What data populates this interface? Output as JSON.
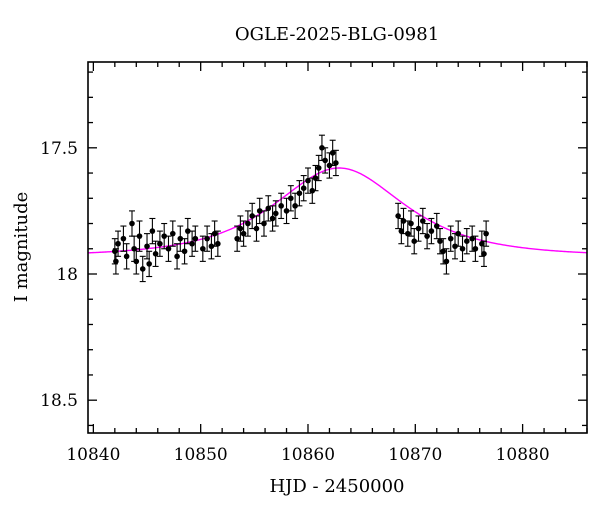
{
  "chart_data": {
    "type": "scatter",
    "title": "OGLE-2025-BLG-0981",
    "xlabel": "HJD - 2450000",
    "ylabel": "I magnitude",
    "xlim": [
      10839.5,
      10886
    ],
    "ylim": [
      18.63,
      17.16
    ],
    "y_inverted": true,
    "xticks": [
      10840,
      10850,
      10860,
      10870,
      10880
    ],
    "xtick_labels": [
      "10840",
      "10850",
      "10860",
      "10870",
      "10880"
    ],
    "yticks": [
      17.5,
      18,
      18.5
    ],
    "ytick_labels": [
      "17.5",
      "18",
      "18.5"
    ],
    "grid": false,
    "colors": {
      "model": "#ff00ff",
      "points": "#000000"
    },
    "model": {
      "t0": 10862.9,
      "i_peak": 17.58,
      "baseline": 17.93,
      "tE": 7.5
    },
    "points": [
      {
        "x": 10842.0,
        "y": 17.91,
        "err": 0.05
      },
      {
        "x": 10842.1,
        "y": 17.95,
        "err": 0.05
      },
      {
        "x": 10842.3,
        "y": 17.88,
        "err": 0.05
      },
      {
        "x": 10842.8,
        "y": 17.86,
        "err": 0.05
      },
      {
        "x": 10843.1,
        "y": 17.93,
        "err": 0.05
      },
      {
        "x": 10843.6,
        "y": 17.8,
        "err": 0.05
      },
      {
        "x": 10843.8,
        "y": 17.9,
        "err": 0.05
      },
      {
        "x": 10844.0,
        "y": 17.95,
        "err": 0.05
      },
      {
        "x": 10844.3,
        "y": 17.85,
        "err": 0.06
      },
      {
        "x": 10844.6,
        "y": 17.98,
        "err": 0.05
      },
      {
        "x": 10845.0,
        "y": 17.89,
        "err": 0.05
      },
      {
        "x": 10845.2,
        "y": 17.96,
        "err": 0.05
      },
      {
        "x": 10845.5,
        "y": 17.83,
        "err": 0.05
      },
      {
        "x": 10845.8,
        "y": 17.92,
        "err": 0.05
      },
      {
        "x": 10846.2,
        "y": 17.88,
        "err": 0.05
      },
      {
        "x": 10846.6,
        "y": 17.85,
        "err": 0.05
      },
      {
        "x": 10847.0,
        "y": 17.9,
        "err": 0.05
      },
      {
        "x": 10847.4,
        "y": 17.84,
        "err": 0.05
      },
      {
        "x": 10847.8,
        "y": 17.93,
        "err": 0.05
      },
      {
        "x": 10848.1,
        "y": 17.86,
        "err": 0.05
      },
      {
        "x": 10848.5,
        "y": 17.91,
        "err": 0.05
      },
      {
        "x": 10848.8,
        "y": 17.83,
        "err": 0.05
      },
      {
        "x": 10849.2,
        "y": 17.88,
        "err": 0.05
      },
      {
        "x": 10849.5,
        "y": 17.86,
        "err": 0.05
      },
      {
        "x": 10850.2,
        "y": 17.9,
        "err": 0.05
      },
      {
        "x": 10850.6,
        "y": 17.86,
        "err": 0.05
      },
      {
        "x": 10851.0,
        "y": 17.89,
        "err": 0.05
      },
      {
        "x": 10851.3,
        "y": 17.84,
        "err": 0.05
      },
      {
        "x": 10851.6,
        "y": 17.88,
        "err": 0.05
      },
      {
        "x": 10853.4,
        "y": 17.86,
        "err": 0.05
      },
      {
        "x": 10853.7,
        "y": 17.82,
        "err": 0.05
      },
      {
        "x": 10854.0,
        "y": 17.84,
        "err": 0.05
      },
      {
        "x": 10854.4,
        "y": 17.8,
        "err": 0.05
      },
      {
        "x": 10854.8,
        "y": 17.77,
        "err": 0.05
      },
      {
        "x": 10855.2,
        "y": 17.82,
        "err": 0.05
      },
      {
        "x": 10855.5,
        "y": 17.75,
        "err": 0.05
      },
      {
        "x": 10855.9,
        "y": 17.8,
        "err": 0.05
      },
      {
        "x": 10856.3,
        "y": 17.74,
        "err": 0.05
      },
      {
        "x": 10856.7,
        "y": 17.78,
        "err": 0.05
      },
      {
        "x": 10857.0,
        "y": 17.76,
        "err": 0.05
      },
      {
        "x": 10857.5,
        "y": 17.73,
        "err": 0.05
      },
      {
        "x": 10858.0,
        "y": 17.75,
        "err": 0.05
      },
      {
        "x": 10858.4,
        "y": 17.7,
        "err": 0.05
      },
      {
        "x": 10858.8,
        "y": 17.73,
        "err": 0.05
      },
      {
        "x": 10859.2,
        "y": 17.68,
        "err": 0.05
      },
      {
        "x": 10859.6,
        "y": 17.66,
        "err": 0.05
      },
      {
        "x": 10860.0,
        "y": 17.63,
        "err": 0.05
      },
      {
        "x": 10860.4,
        "y": 17.67,
        "err": 0.05
      },
      {
        "x": 10860.7,
        "y": 17.62,
        "err": 0.05
      },
      {
        "x": 10861.0,
        "y": 17.58,
        "err": 0.05
      },
      {
        "x": 10861.3,
        "y": 17.5,
        "err": 0.05
      },
      {
        "x": 10861.6,
        "y": 17.55,
        "err": 0.05
      },
      {
        "x": 10862.0,
        "y": 17.57,
        "err": 0.05
      },
      {
        "x": 10862.3,
        "y": 17.52,
        "err": 0.05
      },
      {
        "x": 10862.6,
        "y": 17.56,
        "err": 0.05
      },
      {
        "x": 10868.4,
        "y": 17.77,
        "err": 0.05
      },
      {
        "x": 10868.7,
        "y": 17.83,
        "err": 0.05
      },
      {
        "x": 10868.9,
        "y": 17.79,
        "err": 0.05
      },
      {
        "x": 10869.3,
        "y": 17.84,
        "err": 0.05
      },
      {
        "x": 10869.6,
        "y": 17.8,
        "err": 0.05
      },
      {
        "x": 10869.9,
        "y": 17.87,
        "err": 0.05
      },
      {
        "x": 10870.3,
        "y": 17.82,
        "err": 0.05
      },
      {
        "x": 10870.7,
        "y": 17.79,
        "err": 0.05
      },
      {
        "x": 10871.1,
        "y": 17.85,
        "err": 0.05
      },
      {
        "x": 10871.5,
        "y": 17.83,
        "err": 0.05
      },
      {
        "x": 10872.0,
        "y": 17.81,
        "err": 0.05
      },
      {
        "x": 10872.3,
        "y": 17.87,
        "err": 0.05
      },
      {
        "x": 10872.6,
        "y": 17.91,
        "err": 0.05
      },
      {
        "x": 10872.9,
        "y": 17.95,
        "err": 0.05
      },
      {
        "x": 10873.3,
        "y": 17.86,
        "err": 0.05
      },
      {
        "x": 10873.7,
        "y": 17.89,
        "err": 0.05
      },
      {
        "x": 10874.0,
        "y": 17.84,
        "err": 0.05
      },
      {
        "x": 10874.4,
        "y": 17.9,
        "err": 0.05
      },
      {
        "x": 10874.8,
        "y": 17.87,
        "err": 0.05
      },
      {
        "x": 10875.3,
        "y": 17.86,
        "err": 0.05
      },
      {
        "x": 10875.6,
        "y": 17.9,
        "err": 0.05
      },
      {
        "x": 10876.2,
        "y": 17.88,
        "err": 0.05
      },
      {
        "x": 10876.4,
        "y": 17.92,
        "err": 0.05
      },
      {
        "x": 10876.6,
        "y": 17.84,
        "err": 0.05
      }
    ]
  }
}
